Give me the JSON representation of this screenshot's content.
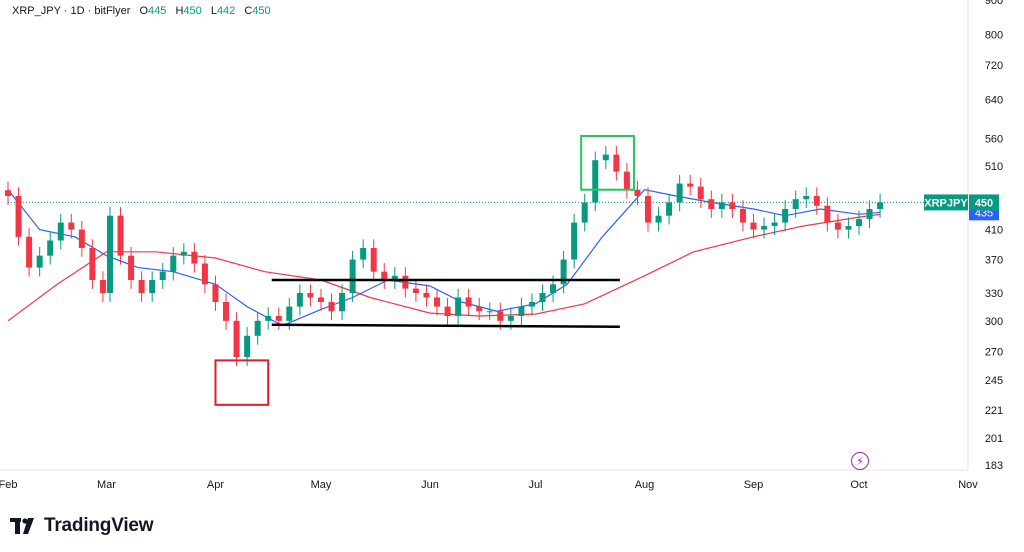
{
  "legend": {
    "symbol": "XRP_JPY · 1D · bitFlyer",
    "o_label": "O",
    "o_value": "445",
    "h_label": "H",
    "h_value": "450",
    "l_label": "L",
    "l_value": "442",
    "c_label": "C",
    "c_value": "450"
  },
  "badges": {
    "symbol": "XRPJPY",
    "price": "450",
    "ma": "435"
  },
  "footer": {
    "brand": "TradingView"
  },
  "icons": {
    "flash": "flash-icon",
    "logo": "tradingview-logo-icon"
  },
  "colors": {
    "up": "#089981",
    "down": "#f23645",
    "ma_short": "#2962ff",
    "ma_long": "#f23645",
    "last_price": "#089981",
    "green_box": "#22c55e",
    "red_box": "#e11d2a"
  },
  "chart_data": {
    "type": "candlestick",
    "y_scale": "log",
    "ylim": [
      180,
      900
    ],
    "y_ticks": [
      183,
      201,
      221,
      245,
      270,
      300,
      330,
      370,
      410,
      450,
      510,
      560,
      640,
      720,
      800,
      900
    ],
    "x_ticks": [
      {
        "label": "Feb",
        "date": "2025-02-01"
      },
      {
        "label": "Mar",
        "date": "2025-03-01"
      },
      {
        "label": "Apr",
        "date": "2025-04-01"
      },
      {
        "label": "May",
        "date": "2025-05-01"
      },
      {
        "label": "Jun",
        "date": "2025-06-01"
      },
      {
        "label": "Jul",
        "date": "2025-07-01"
      },
      {
        "label": "Aug",
        "date": "2025-08-01"
      },
      {
        "label": "Sep",
        "date": "2025-09-01"
      },
      {
        "label": "Oct",
        "date": "2025-10-01"
      },
      {
        "label": "Nov",
        "date": "2025-11-01"
      }
    ],
    "xlim": [
      "2025-02-01",
      "2025-11-01"
    ],
    "last_price": 450,
    "ma_value": 435,
    "closes": [
      {
        "date": "2025-02-01",
        "c": 460
      },
      {
        "date": "2025-02-04",
        "c": 400
      },
      {
        "date": "2025-02-07",
        "c": 360
      },
      {
        "date": "2025-02-10",
        "c": 375
      },
      {
        "date": "2025-02-13",
        "c": 395
      },
      {
        "date": "2025-02-16",
        "c": 420
      },
      {
        "date": "2025-02-19",
        "c": 410
      },
      {
        "date": "2025-02-22",
        "c": 385
      },
      {
        "date": "2025-02-25",
        "c": 345
      },
      {
        "date": "2025-02-28",
        "c": 330
      },
      {
        "date": "2025-03-02",
        "c": 430
      },
      {
        "date": "2025-03-05",
        "c": 375
      },
      {
        "date": "2025-03-08",
        "c": 345
      },
      {
        "date": "2025-03-11",
        "c": 330
      },
      {
        "date": "2025-03-14",
        "c": 345
      },
      {
        "date": "2025-03-17",
        "c": 355
      },
      {
        "date": "2025-03-20",
        "c": 375
      },
      {
        "date": "2025-03-23",
        "c": 380
      },
      {
        "date": "2025-03-26",
        "c": 365
      },
      {
        "date": "2025-03-29",
        "c": 340
      },
      {
        "date": "2025-04-01",
        "c": 320
      },
      {
        "date": "2025-04-04",
        "c": 300
      },
      {
        "date": "2025-04-07",
        "c": 265
      },
      {
        "date": "2025-04-10",
        "c": 285
      },
      {
        "date": "2025-04-13",
        "c": 300
      },
      {
        "date": "2025-04-16",
        "c": 305
      },
      {
        "date": "2025-04-19",
        "c": 300
      },
      {
        "date": "2025-04-22",
        "c": 315
      },
      {
        "date": "2025-04-25",
        "c": 330
      },
      {
        "date": "2025-04-28",
        "c": 325
      },
      {
        "date": "2025-05-01",
        "c": 320
      },
      {
        "date": "2025-05-04",
        "c": 310
      },
      {
        "date": "2025-05-07",
        "c": 330
      },
      {
        "date": "2025-05-10",
        "c": 370
      },
      {
        "date": "2025-05-13",
        "c": 385
      },
      {
        "date": "2025-05-16",
        "c": 355
      },
      {
        "date": "2025-05-19",
        "c": 345
      },
      {
        "date": "2025-05-22",
        "c": 350
      },
      {
        "date": "2025-05-25",
        "c": 335
      },
      {
        "date": "2025-05-28",
        "c": 330
      },
      {
        "date": "2025-05-31",
        "c": 325
      },
      {
        "date": "2025-06-03",
        "c": 315
      },
      {
        "date": "2025-06-06",
        "c": 305
      },
      {
        "date": "2025-06-09",
        "c": 325
      },
      {
        "date": "2025-06-12",
        "c": 315
      },
      {
        "date": "2025-06-15",
        "c": 310
      },
      {
        "date": "2025-06-18",
        "c": 310
      },
      {
        "date": "2025-06-21",
        "c": 300
      },
      {
        "date": "2025-06-24",
        "c": 305
      },
      {
        "date": "2025-06-27",
        "c": 315
      },
      {
        "date": "2025-06-30",
        "c": 320
      },
      {
        "date": "2025-07-03",
        "c": 330
      },
      {
        "date": "2025-07-06",
        "c": 340
      },
      {
        "date": "2025-07-09",
        "c": 370
      },
      {
        "date": "2025-07-12",
        "c": 420
      },
      {
        "date": "2025-07-15",
        "c": 450
      },
      {
        "date": "2025-07-18",
        "c": 520
      },
      {
        "date": "2025-07-21",
        "c": 530
      },
      {
        "date": "2025-07-24",
        "c": 500
      },
      {
        "date": "2025-07-27",
        "c": 470
      },
      {
        "date": "2025-07-30",
        "c": 460
      },
      {
        "date": "2025-08-02",
        "c": 420
      },
      {
        "date": "2025-08-05",
        "c": 430
      },
      {
        "date": "2025-08-08",
        "c": 450
      },
      {
        "date": "2025-08-11",
        "c": 480
      },
      {
        "date": "2025-08-14",
        "c": 475
      },
      {
        "date": "2025-08-17",
        "c": 455
      },
      {
        "date": "2025-08-20",
        "c": 440
      },
      {
        "date": "2025-08-23",
        "c": 450
      },
      {
        "date": "2025-08-26",
        "c": 440
      },
      {
        "date": "2025-08-29",
        "c": 420
      },
      {
        "date": "2025-09-01",
        "c": 410
      },
      {
        "date": "2025-09-04",
        "c": 415
      },
      {
        "date": "2025-09-07",
        "c": 420
      },
      {
        "date": "2025-09-10",
        "c": 440
      },
      {
        "date": "2025-09-13",
        "c": 455
      },
      {
        "date": "2025-09-16",
        "c": 460
      },
      {
        "date": "2025-09-19",
        "c": 445
      },
      {
        "date": "2025-09-22",
        "c": 420
      },
      {
        "date": "2025-09-25",
        "c": 410
      },
      {
        "date": "2025-09-28",
        "c": 415
      },
      {
        "date": "2025-10-01",
        "c": 425
      },
      {
        "date": "2025-10-04",
        "c": 440
      },
      {
        "date": "2025-10-07",
        "c": 450
      }
    ],
    "ma_short": [
      {
        "date": "2025-02-01",
        "v": 470
      },
      {
        "date": "2025-02-10",
        "v": 410
      },
      {
        "date": "2025-02-20",
        "v": 400
      },
      {
        "date": "2025-03-01",
        "v": 375
      },
      {
        "date": "2025-03-10",
        "v": 360
      },
      {
        "date": "2025-03-20",
        "v": 355
      },
      {
        "date": "2025-04-01",
        "v": 340
      },
      {
        "date": "2025-04-10",
        "v": 315
      },
      {
        "date": "2025-04-20",
        "v": 295
      },
      {
        "date": "2025-05-01",
        "v": 312
      },
      {
        "date": "2025-05-10",
        "v": 325
      },
      {
        "date": "2025-05-20",
        "v": 345
      },
      {
        "date": "2025-06-01",
        "v": 338
      },
      {
        "date": "2025-06-10",
        "v": 320
      },
      {
        "date": "2025-06-20",
        "v": 310
      },
      {
        "date": "2025-07-01",
        "v": 318
      },
      {
        "date": "2025-07-10",
        "v": 340
      },
      {
        "date": "2025-07-20",
        "v": 400
      },
      {
        "date": "2025-08-01",
        "v": 470
      },
      {
        "date": "2025-08-10",
        "v": 460
      },
      {
        "date": "2025-08-20",
        "v": 450
      },
      {
        "date": "2025-09-01",
        "v": 440
      },
      {
        "date": "2025-09-10",
        "v": 430
      },
      {
        "date": "2025-09-20",
        "v": 440
      },
      {
        "date": "2025-10-01",
        "v": 432
      },
      {
        "date": "2025-10-07",
        "v": 435
      }
    ],
    "ma_long": [
      {
        "date": "2025-02-01",
        "v": 300
      },
      {
        "date": "2025-02-15",
        "v": 340
      },
      {
        "date": "2025-03-01",
        "v": 380
      },
      {
        "date": "2025-03-15",
        "v": 380
      },
      {
        "date": "2025-04-01",
        "v": 372
      },
      {
        "date": "2025-04-15",
        "v": 355
      },
      {
        "date": "2025-05-01",
        "v": 345
      },
      {
        "date": "2025-05-15",
        "v": 325
      },
      {
        "date": "2025-06-01",
        "v": 308
      },
      {
        "date": "2025-06-15",
        "v": 305
      },
      {
        "date": "2025-07-01",
        "v": 307
      },
      {
        "date": "2025-07-15",
        "v": 318
      },
      {
        "date": "2025-08-01",
        "v": 350
      },
      {
        "date": "2025-08-15",
        "v": 380
      },
      {
        "date": "2025-09-01",
        "v": 400
      },
      {
        "date": "2025-09-15",
        "v": 415
      },
      {
        "date": "2025-10-01",
        "v": 428
      },
      {
        "date": "2025-10-07",
        "v": 432
      }
    ],
    "annotations": [
      {
        "type": "box",
        "color": "red",
        "x0": "2025-04-01",
        "x1": "2025-04-16",
        "y0": 225,
        "y1": 262
      },
      {
        "type": "box",
        "color": "green",
        "x0": "2025-07-14",
        "x1": "2025-07-29",
        "y0": 470,
        "y1": 565
      },
      {
        "type": "line",
        "x0": "2025-04-17",
        "x1": "2025-07-25",
        "y0": 345,
        "y1": 345
      },
      {
        "type": "line",
        "x0": "2025-04-17",
        "x1": "2025-07-25",
        "y0": 296,
        "y1": 294
      }
    ],
    "grid": false
  }
}
